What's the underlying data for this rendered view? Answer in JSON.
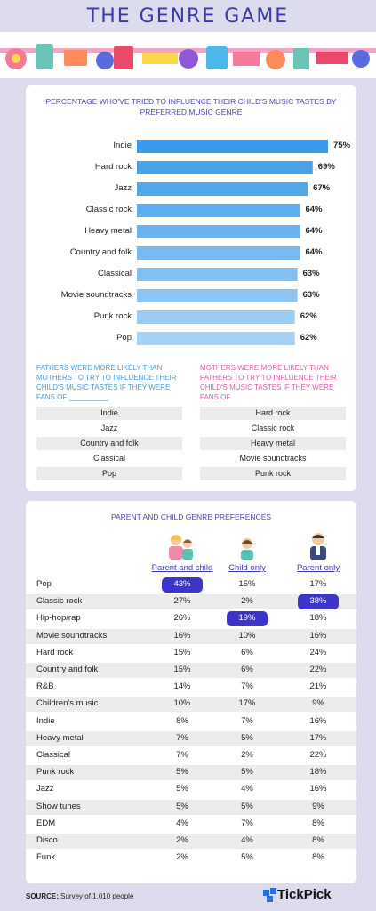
{
  "title": "THE GENRE GAME",
  "colors": {
    "accent": "#3b3aa8",
    "bar_dark": "#3a9bea",
    "bar_light": "#a6d2f5",
    "highlight": "#3d35c9",
    "fathers": "#4a9ad8",
    "mothers": "#e05aa8"
  },
  "chart_data": [
    {
      "type": "bar",
      "orientation": "horizontal",
      "title": "PERCENTAGE WHO'VE TRIED TO INFLUENCE THEIR CHILD'S MUSIC TASTES BY PREFERRED MUSIC GENRE",
      "categories": [
        "Indie",
        "Hard rock",
        "Jazz",
        "Classic rock",
        "Heavy metal",
        "Country and folk",
        "Classical",
        "Movie soundtracks",
        "Punk rock",
        "Pop"
      ],
      "values": [
        75,
        69,
        67,
        64,
        64,
        64,
        63,
        63,
        62,
        62
      ],
      "value_labels": [
        "75%",
        "69%",
        "67%",
        "64%",
        "64%",
        "64%",
        "63%",
        "63%",
        "62%",
        "62%"
      ],
      "xlim": [
        0,
        75
      ]
    },
    {
      "type": "table",
      "title": "PARENT AND CHILD GENRE PREFERENCES",
      "columns": [
        "Parent and child",
        "Child only",
        "Parent only"
      ],
      "rows": [
        {
          "genre": "Pop",
          "values": [
            "43%",
            "15%",
            "17%"
          ],
          "highlight": 0
        },
        {
          "genre": "Classic rock",
          "values": [
            "27%",
            "2%",
            "38%"
          ],
          "highlight": 2
        },
        {
          "genre": "Hip-hop/rap",
          "values": [
            "26%",
            "19%",
            "18%"
          ],
          "highlight": 1
        },
        {
          "genre": "Movie soundtracks",
          "values": [
            "16%",
            "10%",
            "16%"
          ],
          "highlight": -1
        },
        {
          "genre": "Hard rock",
          "values": [
            "15%",
            "6%",
            "24%"
          ],
          "highlight": -1
        },
        {
          "genre": "Country and folk",
          "values": [
            "15%",
            "6%",
            "22%"
          ],
          "highlight": -1
        },
        {
          "genre": "R&B",
          "values": [
            "14%",
            "7%",
            "21%"
          ],
          "highlight": -1
        },
        {
          "genre": "Children's music",
          "values": [
            "10%",
            "17%",
            "9%"
          ],
          "highlight": -1
        },
        {
          "genre": "Indie",
          "values": [
            "8%",
            "7%",
            "16%"
          ],
          "highlight": -1
        },
        {
          "genre": "Heavy metal",
          "values": [
            "7%",
            "5%",
            "17%"
          ],
          "highlight": -1
        },
        {
          "genre": "Classical",
          "values": [
            "7%",
            "2%",
            "22%"
          ],
          "highlight": -1
        },
        {
          "genre": "Punk rock",
          "values": [
            "5%",
            "5%",
            "18%"
          ],
          "highlight": -1
        },
        {
          "genre": "Jazz",
          "values": [
            "5%",
            "4%",
            "16%"
          ],
          "highlight": -1
        },
        {
          "genre": "Show tunes",
          "values": [
            "5%",
            "5%",
            "9%"
          ],
          "highlight": -1
        },
        {
          "genre": "EDM",
          "values": [
            "4%",
            "7%",
            "8%"
          ],
          "highlight": -1
        },
        {
          "genre": "Disco",
          "values": [
            "2%",
            "4%",
            "8%"
          ],
          "highlight": -1
        },
        {
          "genre": "Funk",
          "values": [
            "2%",
            "5%",
            "8%"
          ],
          "highlight": -1
        }
      ]
    }
  ],
  "fathers_note": "FATHERS WERE MORE LIKELY THAN MOTHERS TO TRY TO INFLUENCE THEIR CHILD'S MUSIC TASTES IF THEY WERE FANS OF __________",
  "mothers_note": "MOTHERS WERE MORE LIKELY THAN FATHERS TO TRY TO INFLUENCE THEIR CHILD'S MUSIC TASTES IF THEY WERE FANS OF",
  "fathers_genres": [
    "Indie",
    "Jazz",
    "Country and folk",
    "Classical",
    "Pop"
  ],
  "mothers_genres": [
    "Hard rock",
    "Classic rock",
    "Heavy metal",
    "Movie soundtracks",
    "Punk rock"
  ],
  "footer": {
    "source_label": "SOURCE:",
    "source_text": "Survey of 1,010 people",
    "brand": "TickPick"
  }
}
